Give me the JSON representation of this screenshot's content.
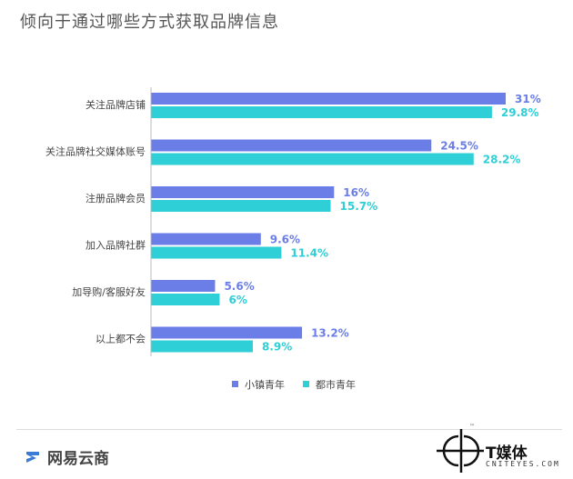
{
  "title": "倾向于通过哪些方式获取品牌信息",
  "chart_data": {
    "type": "bar",
    "orientation": "horizontal",
    "categories": [
      "关注品牌店铺",
      "关注品牌社交媒体账号",
      "注册品牌会员",
      "加入品牌社群",
      "加导购/客服好友",
      "以上都不会"
    ],
    "series": [
      {
        "name": "小镇青年",
        "color": "#6b7ee8",
        "values": [
          31,
          24.5,
          16,
          9.6,
          5.6,
          13.2
        ],
        "labels": [
          "31%",
          "24.5%",
          "16%",
          "9.6%",
          "5.6%",
          "13.2%"
        ]
      },
      {
        "name": "都市青年",
        "color": "#2ecfd6",
        "values": [
          29.8,
          28.2,
          15.7,
          11.4,
          6,
          8.9
        ],
        "labels": [
          "29.8%",
          "28.2%",
          "15.7%",
          "11.4%",
          "6%",
          "8.9%"
        ]
      }
    ],
    "xlim": [
      0,
      31
    ],
    "legend_position": "bottom",
    "grid": false
  },
  "brand": {
    "left_name": "网易云商",
    "right_name": "T媒体",
    "right_domain": "CNITEYES.COM",
    "right_tm": "™"
  }
}
